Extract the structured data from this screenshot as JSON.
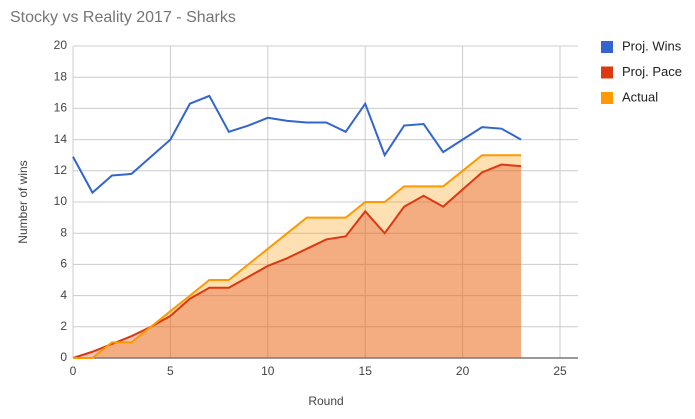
{
  "chart_data": {
    "type": "line",
    "title": "Stocky vs Reality 2017 - Sharks",
    "x_label": "Round",
    "y_label": "Number of wins",
    "x": [
      0,
      1,
      2,
      3,
      4,
      5,
      6,
      7,
      8,
      9,
      10,
      11,
      12,
      13,
      14,
      15,
      16,
      17,
      18,
      19,
      20,
      21,
      22,
      23
    ],
    "series": [
      {
        "name": "Proj. Wins",
        "color": "#3366cc",
        "area": false,
        "values": [
          12.9,
          10.6,
          11.7,
          11.8,
          12.9,
          14.0,
          16.3,
          16.8,
          14.5,
          14.9,
          15.4,
          15.2,
          15.1,
          15.1,
          14.5,
          16.3,
          13.0,
          14.9,
          15.0,
          13.2,
          14.0,
          14.8,
          14.7,
          14.0
        ]
      },
      {
        "name": "Proj. Pace",
        "color": "#dc3912",
        "area": true,
        "values": [
          0,
          0.4,
          0.9,
          1.4,
          2.0,
          2.7,
          3.8,
          4.5,
          4.5,
          5.2,
          5.9,
          6.4,
          7.0,
          7.6,
          7.8,
          9.4,
          8.0,
          9.7,
          10.4,
          9.7,
          10.8,
          11.9,
          12.4,
          12.3
        ]
      },
      {
        "name": "Actual",
        "color": "#ff9900",
        "area": true,
        "values": [
          0,
          0,
          1,
          1,
          2,
          3,
          4,
          5,
          5,
          6,
          7,
          8,
          9,
          9,
          9,
          10,
          10,
          11,
          11,
          11,
          12,
          13,
          13,
          13
        ]
      }
    ],
    "xlim": [
      0,
      25
    ],
    "xticks": [
      0,
      5,
      10,
      15,
      20,
      25
    ],
    "ylim": [
      0,
      20
    ],
    "yticks": [
      0,
      2,
      4,
      6,
      8,
      10,
      12,
      14,
      16,
      18,
      20
    ],
    "grid": true,
    "legend": "right"
  }
}
